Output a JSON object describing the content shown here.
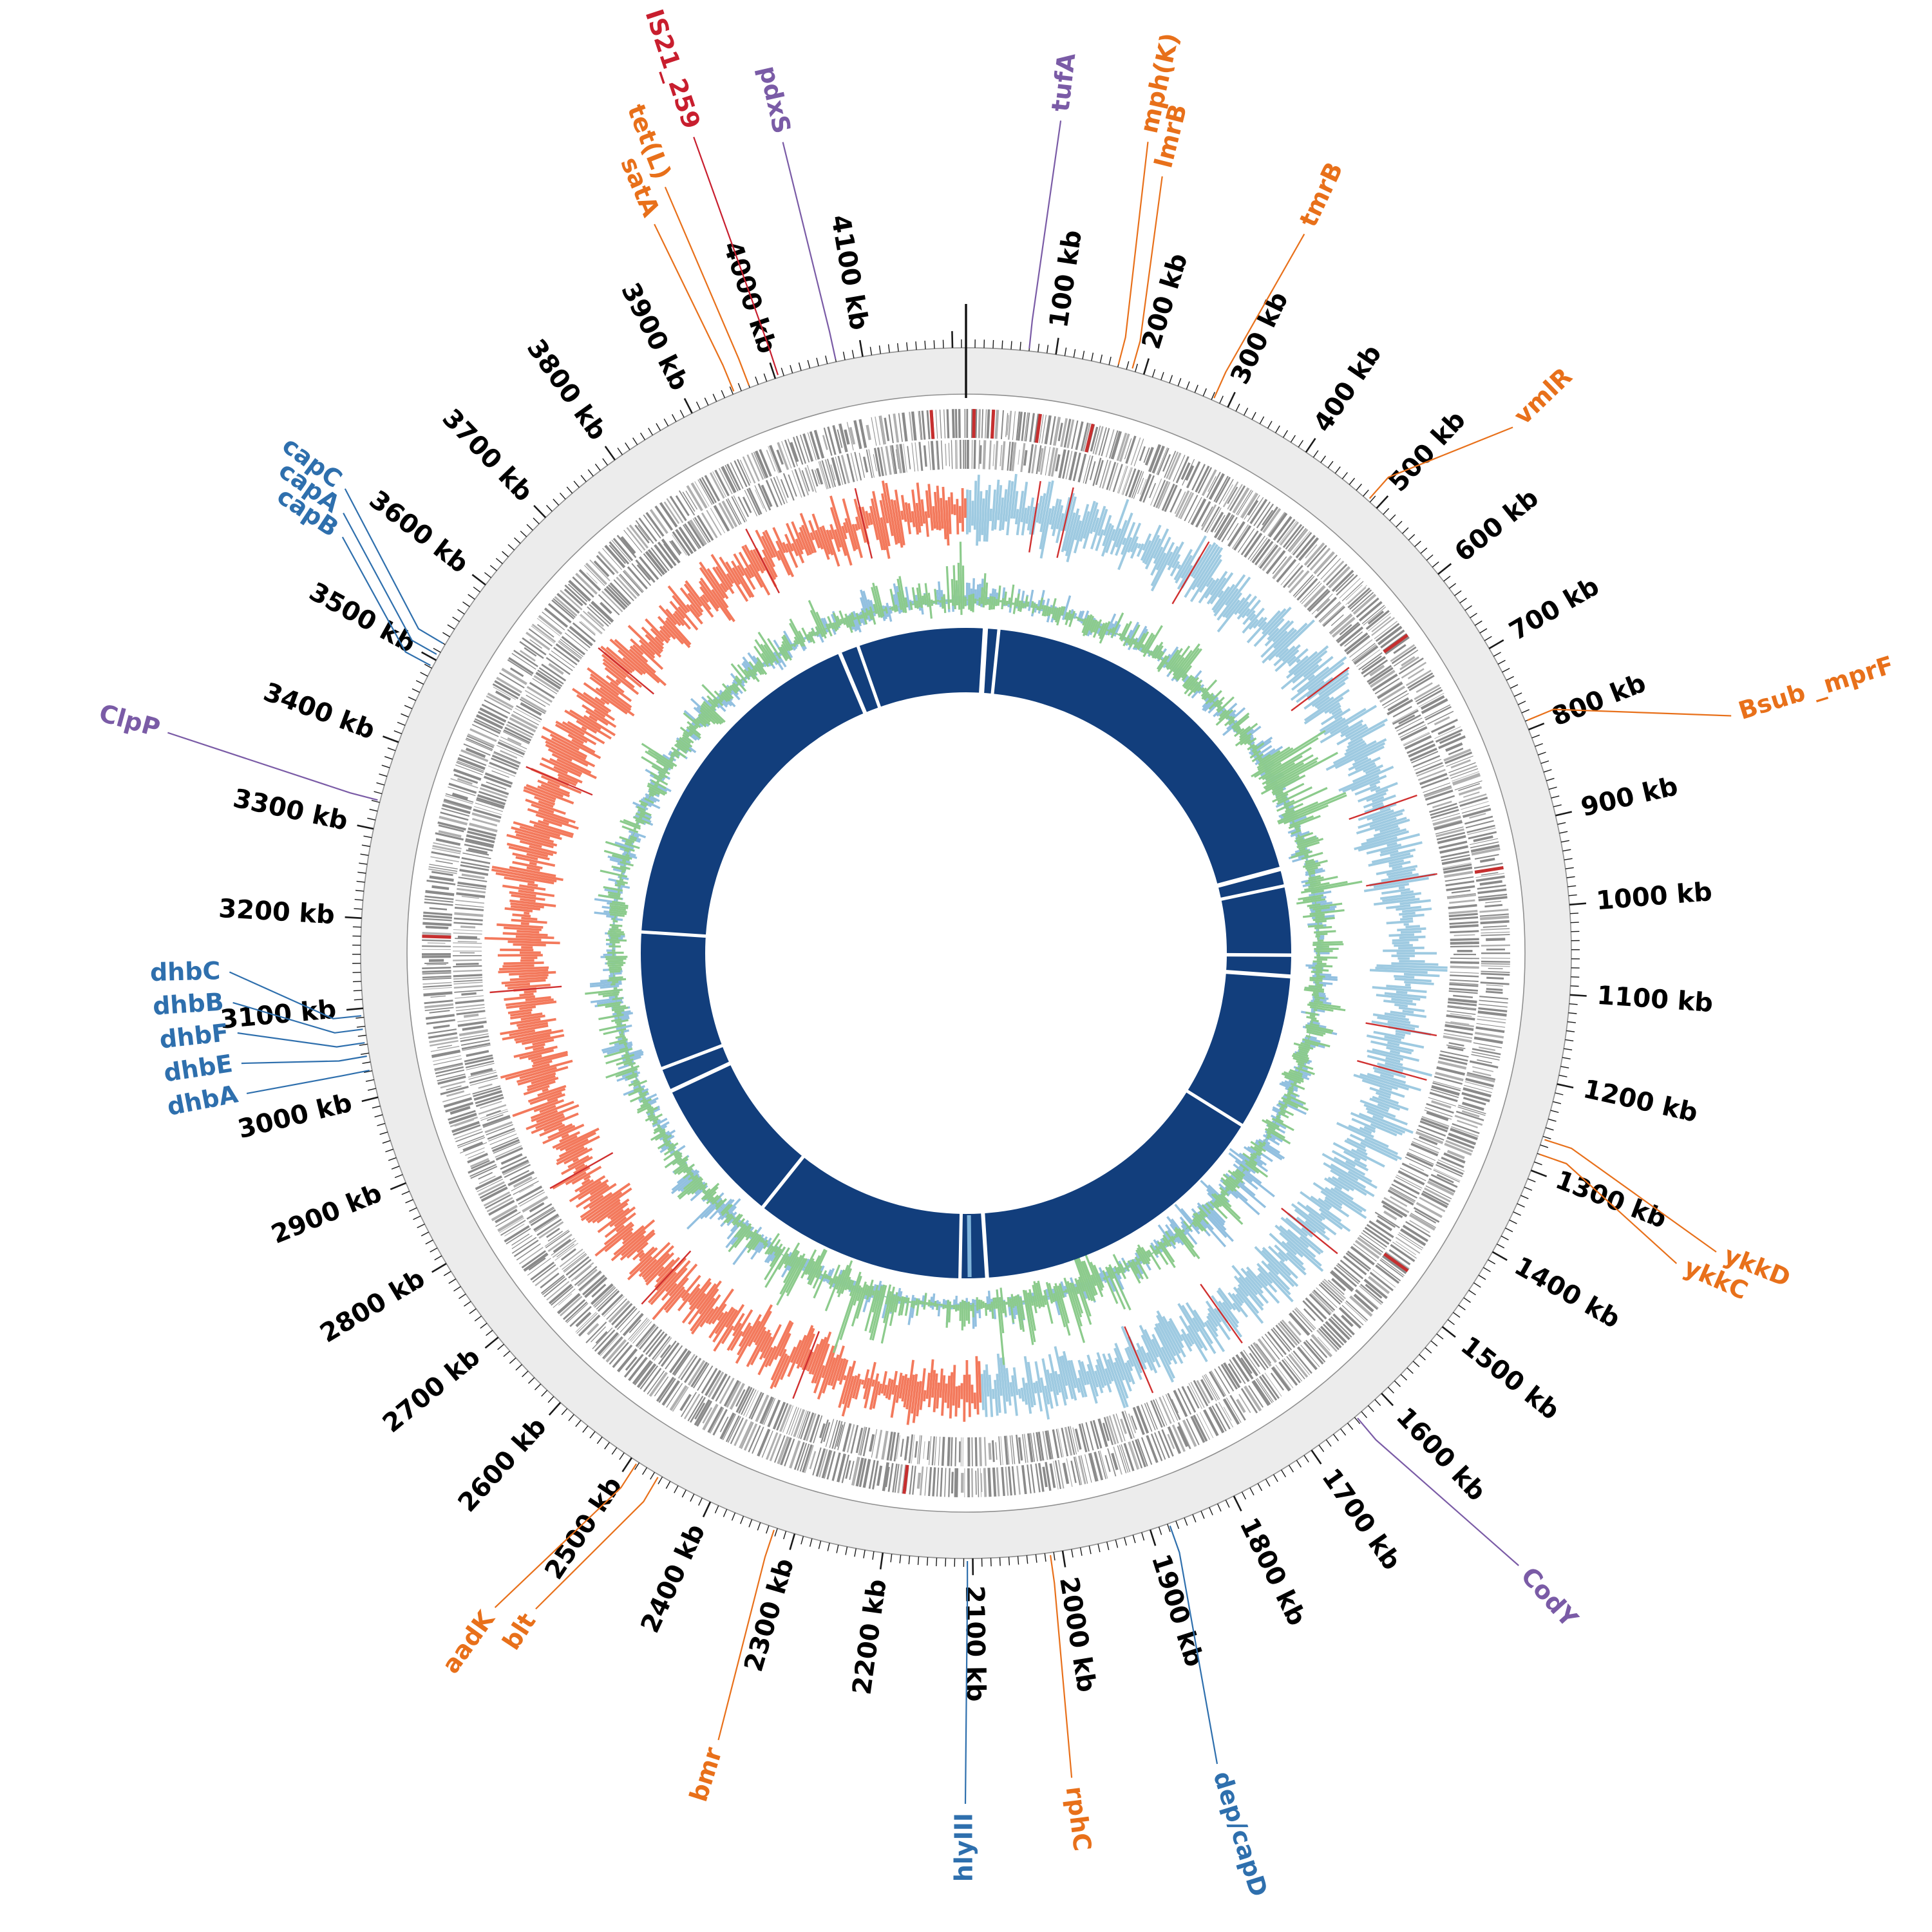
{
  "figure": {
    "background": "#ffffff",
    "kind": "circular genome map"
  },
  "chart_data": {
    "type": "circos",
    "description": "Circular bacterial genome map: outer kb axis ring, gray two-row gene annotation barcode track with red highlights, GC-skew histogram (light blue positive / salmon negative) with red spikes, GC-content histogram (green/light blue), and inner dark navy alignment ring with white gaps.",
    "genome_length_kb": 4215,
    "axis": {
      "unit": "kb",
      "major_tick_interval_kb": 100,
      "minor_tick_interval_kb": 10,
      "labels": [
        100,
        200,
        300,
        400,
        500,
        600,
        700,
        800,
        900,
        1000,
        1100,
        1200,
        1300,
        1400,
        1500,
        1600,
        1700,
        1800,
        1900,
        2000,
        2100,
        2200,
        2300,
        2400,
        2500,
        2600,
        2700,
        2800,
        2900,
        3000,
        3100,
        3200,
        3300,
        3400,
        3500,
        3600,
        3700,
        3800,
        3900,
        4000,
        4100
      ],
      "origin_marker_kb": 0
    },
    "tracks": {
      "ideogram": {
        "fill": "#ececec",
        "stroke": "#8f8f8f"
      },
      "gene_annotation": {
        "bar_color": "#8a8a8a",
        "bar_color_light": "#b0b0b0",
        "highlight_color": "#c62f2f",
        "rows": 2,
        "noise_seed": 11,
        "red_marks_kb": [
          10,
          34,
          92,
          158,
          635,
          948,
          1472,
          2184,
          3182,
          4172
        ]
      },
      "gc_skew": {
        "positive_color": "#9ecae1",
        "negative_color": "#f3795c",
        "spike_color": "#d03030",
        "noise_seed": 23,
        "regions": [
          {
            "from_kb": 0,
            "to_kb": 2085,
            "sign": "positive"
          },
          {
            "from_kb": 2085,
            "to_kb": 4215,
            "sign": "negative"
          }
        ],
        "spikes_kb": [
          105,
          152,
          358,
          624,
          828,
          942,
          1170,
          1234,
          1510,
          1694,
          1838,
          2356,
          2608,
          2816,
          3106,
          3430,
          3626,
          3894,
          4058
        ]
      },
      "gc_content": {
        "primary_color": "#8ccb8c",
        "secondary_color": "#92c0e0",
        "noise_seed": 37,
        "green_boost_regions_kb": [
          [
            680,
            800
          ],
          [
            930,
            1010
          ],
          [
            1800,
            2050
          ],
          [
            2250,
            2520
          ],
          [
            4140,
            4215
          ]
        ],
        "blue_boost_regions_kb": [
          [
            1450,
            1700
          ],
          [
            2520,
            2640
          ]
        ]
      },
      "alignment_ring": {
        "color": "#123e7c",
        "accent_color": "#7fb3d9",
        "accent_kb": 2100,
        "gaps_kb": [
          [
            40,
            12
          ],
          [
            68,
            7
          ],
          [
            878,
            10
          ],
          [
            914,
            7
          ],
          [
            1058,
            8
          ],
          [
            1102,
            9
          ],
          [
            1428,
            7
          ],
          [
            2064,
            9
          ],
          [
            2120,
            7
          ],
          [
            2560,
            8
          ],
          [
            2868,
            9
          ],
          [
            2918,
            6
          ],
          [
            3205,
            7
          ],
          [
            3948,
            9
          ],
          [
            3988,
            7
          ]
        ]
      }
    },
    "label_colors": {
      "orange": "#e8701a",
      "red": "#c81e2e",
      "purple": "#7a5ba6",
      "blue": "#2e6fad"
    },
    "gene_labels": [
      {
        "name": "tufA",
        "kb": 70,
        "label_kb": 76,
        "r": 1315,
        "color": "purple"
      },
      {
        "name": "mph(K)",
        "kb": 170,
        "label_kb": 148,
        "r": 1305,
        "color": "orange"
      },
      {
        "name": "lmrB",
        "kb": 186,
        "label_kb": 166,
        "r": 1258,
        "color": "orange"
      },
      {
        "name": "tmrB",
        "kb": 282,
        "label_kb": 295,
        "r": 1248,
        "color": "orange"
      },
      {
        "name": "vmlR",
        "kb": 487,
        "label_kb": 540,
        "r": 1192,
        "color": "orange"
      },
      {
        "name": "Bsub _mprF",
        "kb": 790,
        "label_kb": 852,
        "r": 1258,
        "color": "orange"
      },
      {
        "name": "ykkD",
        "kb": 1263,
        "label_kb": 1308,
        "r": 1268,
        "color": "orange"
      },
      {
        "name": "ykkC",
        "kb": 1280,
        "label_kb": 1330,
        "r": 1218,
        "color": "orange"
      },
      {
        "name": "CodY",
        "kb": 1638,
        "label_kb": 1615,
        "r": 1295,
        "color": "purple"
      },
      {
        "name": "dep/capD",
        "kb": 1878,
        "label_kb": 1906,
        "r": 1332,
        "color": "blue"
      },
      {
        "name": "rphC",
        "kb": 2014,
        "label_kb": 2022,
        "r": 1305,
        "color": "orange"
      },
      {
        "name": "hlyIII",
        "kb": 2106,
        "label_kb": 2108,
        "r": 1335,
        "color": "blue"
      },
      {
        "name": "bmr",
        "kb": 2323,
        "label_kb": 2312,
        "r": 1295,
        "color": "orange"
      },
      {
        "name": "blt",
        "kb": 2464,
        "label_kb": 2497,
        "r": 1232,
        "color": "orange"
      },
      {
        "name": "aadK",
        "kb": 2492,
        "label_kb": 2526,
        "r": 1266,
        "color": "orange"
      },
      {
        "name": "dhbA",
        "kb": 3031,
        "label_kb": 3032,
        "r": 1152,
        "color": "blue"
      },
      {
        "name": "dhbE",
        "kb": 3047,
        "label_kb": 3060,
        "r": 1152,
        "color": "blue"
      },
      {
        "name": "dhbF",
        "kb": 3062,
        "label_kb": 3088,
        "r": 1152,
        "color": "blue"
      },
      {
        "name": "dhbB",
        "kb": 3077,
        "label_kb": 3116,
        "r": 1155,
        "color": "blue"
      },
      {
        "name": "dhbC",
        "kb": 3092,
        "label_kb": 3144,
        "r": 1158,
        "color": "blue"
      },
      {
        "name": "ClpP",
        "kb": 3332,
        "label_kb": 3342,
        "r": 1300,
        "color": "purple"
      },
      {
        "name": "capB",
        "kb": 3492,
        "label_kb": 3556,
        "r": 1178,
        "color": "blue"
      },
      {
        "name": "capA",
        "kb": 3506,
        "label_kb": 3574,
        "r": 1198,
        "color": "blue"
      },
      {
        "name": "capC",
        "kb": 3520,
        "label_kb": 3592,
        "r": 1218,
        "color": "blue"
      },
      {
        "name": "satA",
        "kb": 3952,
        "label_kb": 3944,
        "r": 1245,
        "color": "orange"
      },
      {
        "name": "tet(L)",
        "kb": 3970,
        "label_kb": 3964,
        "r": 1292,
        "color": "orange"
      },
      {
        "name": "IS21_259",
        "kb": 4004,
        "label_kb": 3999,
        "r": 1350,
        "color": "red"
      },
      {
        "name": "pdxS",
        "kb": 4070,
        "label_kb": 4066,
        "r": 1305,
        "color": "purple"
      }
    ]
  }
}
